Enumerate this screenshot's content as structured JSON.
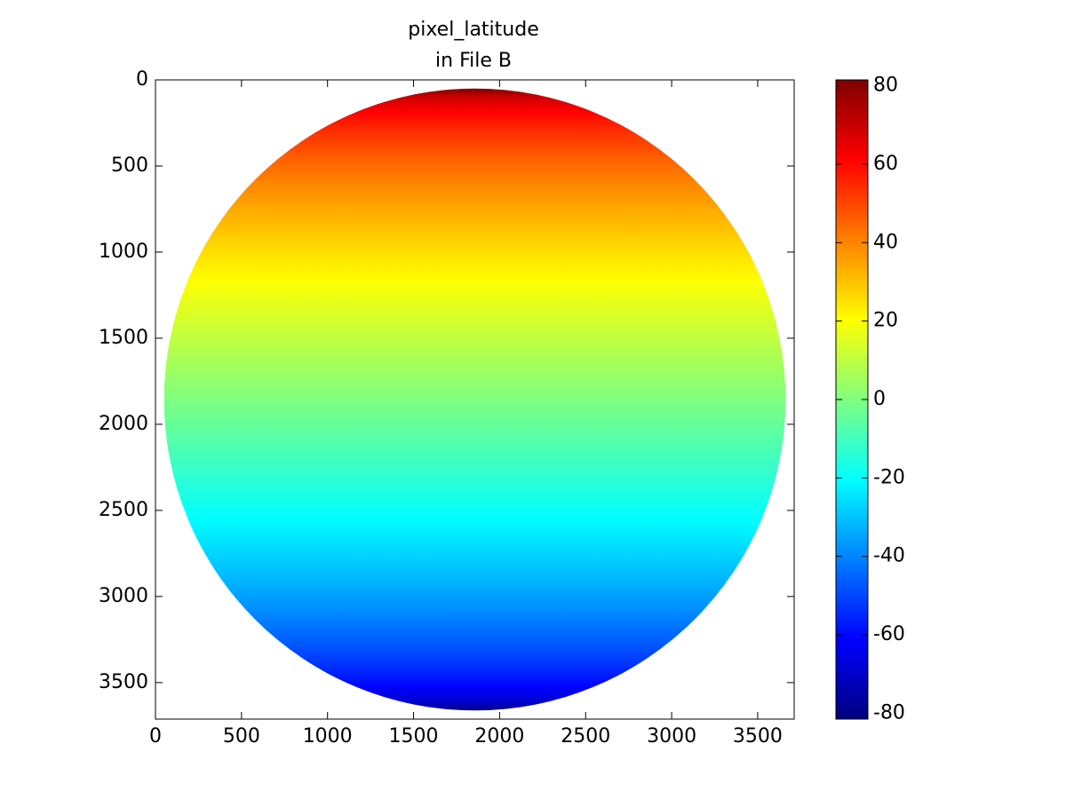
{
  "chart_data": {
    "type": "image",
    "title": [
      "pixel_latitude",
      "in File B"
    ],
    "colormap": "jet",
    "xlim": [
      0,
      3712
    ],
    "ylim": [
      3712,
      0
    ],
    "xticks": [
      0,
      500,
      1000,
      1500,
      2000,
      2500,
      3000,
      3500
    ],
    "yticks": [
      0,
      500,
      1000,
      1500,
      2000,
      2500,
      3000,
      3500
    ],
    "disk": {
      "center": [
        1856,
        1856
      ],
      "radius": 1806,
      "value_range": [
        -81.5,
        81.5
      ]
    },
    "clim": [
      -81.5,
      81.5
    ],
    "cticks": [
      -80,
      -60,
      -40,
      -20,
      0,
      20,
      40,
      60,
      80
    ]
  }
}
